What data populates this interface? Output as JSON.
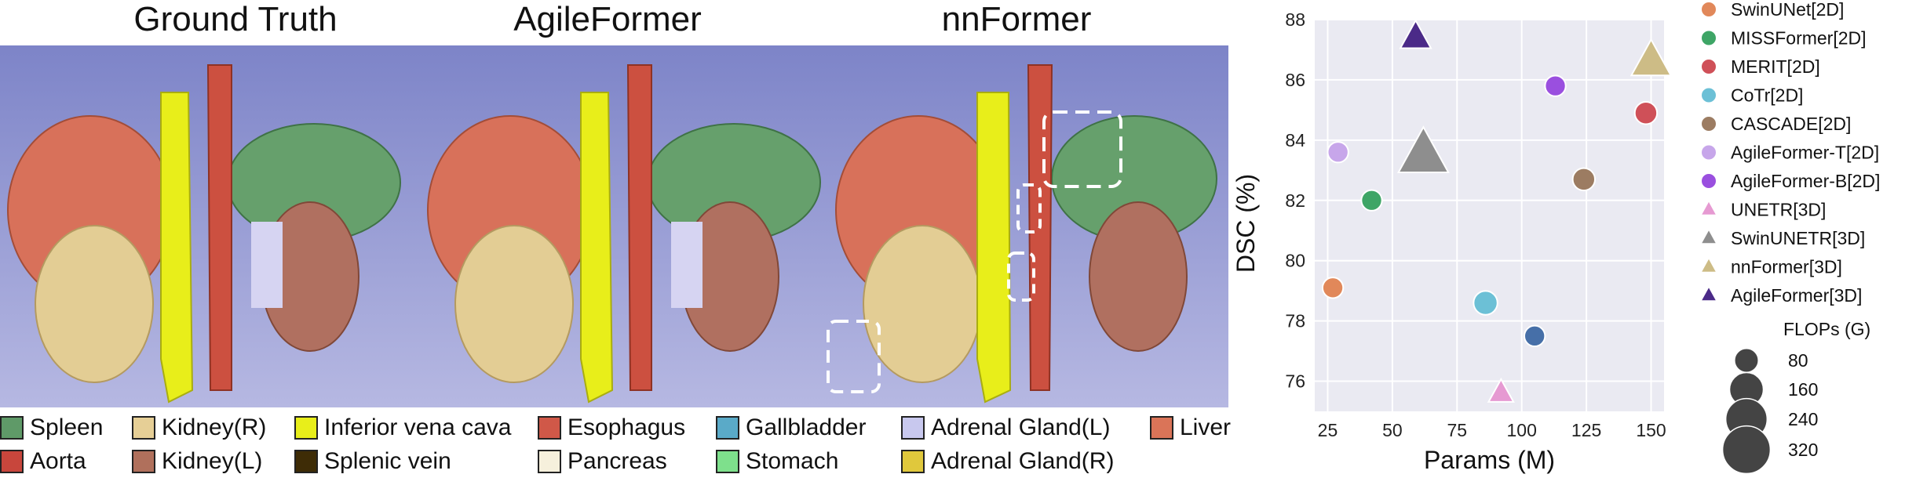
{
  "panels": [
    {
      "title": "Ground Truth"
    },
    {
      "title": "AgileFormer"
    },
    {
      "title": "nnFormer"
    }
  ],
  "organ_legend": [
    {
      "label": "Spleen",
      "color": "#5f9a68"
    },
    {
      "label": "Kidney(R)",
      "color": "#e6cf96"
    },
    {
      "label": "Inferior vena cava",
      "color": "#e8ee1a"
    },
    {
      "label": "Esophagus",
      "color": "#d05848"
    },
    {
      "label": "Gallbladder",
      "color": "#5aaac8"
    },
    {
      "label": "Adrenal Gland(L)",
      "color": "#c8c8ee"
    },
    {
      "label": "Liver",
      "color": "#da7458"
    },
    {
      "label": "Aorta",
      "color": "#c8463c"
    },
    {
      "label": "Kidney(L)",
      "color": "#b0705c"
    },
    {
      "label": "Splenic vein",
      "color": "#3e2c06"
    },
    {
      "label": "Pancreas",
      "color": "#f6f0dc"
    },
    {
      "label": "Stomach",
      "color": "#7ee08c"
    },
    {
      "label": "Adrenal Gland(R)",
      "color": "#e0c83c"
    }
  ],
  "chart_data": {
    "type": "scatter",
    "xlabel": "Params (M)",
    "ylabel": "DSC (%)",
    "xlim": [
      20,
      155
    ],
    "ylim": [
      75,
      88
    ],
    "xticks": [
      "25",
      "50",
      "75",
      "100",
      "125",
      "150"
    ],
    "yticks": [
      "76",
      "78",
      "80",
      "82",
      "84",
      "86",
      "88"
    ],
    "grid": true,
    "background": "#eaeaf2",
    "legend_position": "right",
    "series": [
      {
        "name": "SwinUNet[2D]",
        "marker": "circle",
        "color": "#e1885a",
        "x": 27,
        "y": 79.1,
        "flops": 60
      },
      {
        "name": "MISSFormer[2D]",
        "marker": "circle",
        "color": "#3ea566",
        "x": 42,
        "y": 82.0,
        "flops": 60
      },
      {
        "name": "MERIT[2D]",
        "marker": "circle",
        "color": "#cf5058",
        "x": 148,
        "y": 84.9,
        "flops": 70
      },
      {
        "name": "CoTr[2D]",
        "marker": "circle",
        "color": "#6cc0d6",
        "x": 86,
        "y": 78.6,
        "flops": 80
      },
      {
        "name": "CASCADE[2D]",
        "marker": "circle",
        "color": "#9c7c62",
        "x": 124,
        "y": 82.7,
        "flops": 70
      },
      {
        "name": "AgileFormer-T[2D]",
        "marker": "circle",
        "color": "#c7a6ea",
        "x": 29,
        "y": 83.6,
        "flops": 60
      },
      {
        "name": "AgileFormer-B[2D]",
        "marker": "circle",
        "color": "#9a4fdf",
        "x": 113,
        "y": 85.8,
        "flops": 60
      },
      {
        "name": "UNETR[3D]",
        "marker": "triangle",
        "color": "#e69ad2",
        "x": 92,
        "y": 75.6,
        "flops": 80
      },
      {
        "name": "SwinUNETR[3D]",
        "marker": "triangle",
        "color": "#8e8e8e",
        "x": 62,
        "y": 83.5,
        "flops": 320
      },
      {
        "name": "nnFormer[3D]",
        "marker": "triangle",
        "color": "#cdbc86",
        "x": 150,
        "y": 86.6,
        "flops": 200
      },
      {
        "name": "AgileFormer[3D]",
        "marker": "triangle",
        "color": "#4b2a88",
        "x": 59,
        "y": 87.4,
        "flops": 120
      }
    ],
    "extra_points": [
      {
        "marker": "circle",
        "color": "#466fa8",
        "x": 105,
        "y": 77.5,
        "flops": 60
      }
    ],
    "size_legend": {
      "title": "FLOPs (G)",
      "entries": [
        {
          "label": "80",
          "flops": 80
        },
        {
          "label": "160",
          "flops": 160
        },
        {
          "label": "240",
          "flops": 240
        },
        {
          "label": "320",
          "flops": 320
        }
      ]
    }
  }
}
